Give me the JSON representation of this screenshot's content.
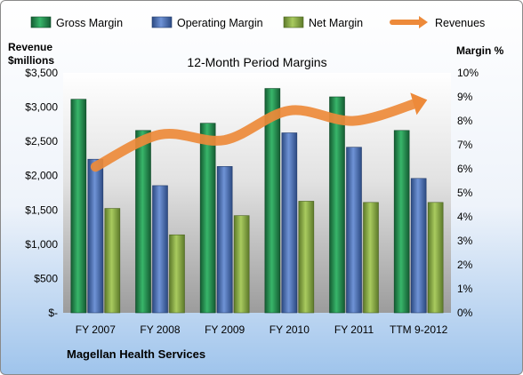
{
  "chart_data": {
    "type": "bar",
    "title": "12-Month Period Margins",
    "company": "Magellan Health Services",
    "ylabel_left": [
      "Revenue",
      "$millions"
    ],
    "ylabel_right": "Margin %",
    "categories": [
      "FY 2007",
      "FY 2008",
      "FY 2009",
      "FY 2010",
      "FY 2011",
      "TTM 9-2012"
    ],
    "y_left": {
      "min": 0,
      "max": 3500,
      "step": 500,
      "tick_labels": [
        "$-",
        "$500",
        "$1,000",
        "$1,500",
        "$2,000",
        "$2,500",
        "$3,000",
        "$3,500"
      ]
    },
    "y_right": {
      "min": 0,
      "max": 10,
      "step": 1,
      "tick_labels": [
        "0%",
        "1%",
        "2%",
        "3%",
        "4%",
        "5%",
        "6%",
        "7%",
        "8%",
        "9%",
        "10%"
      ]
    },
    "series": [
      {
        "name": "Gross Margin",
        "axis": "right",
        "color": "#1f8a4c",
        "values": [
          8.9,
          7.6,
          7.9,
          9.35,
          9.0,
          7.6
        ]
      },
      {
        "name": "Operating Margin",
        "axis": "right",
        "color": "#4a6fb3",
        "values": [
          6.4,
          5.3,
          6.1,
          7.5,
          6.9,
          5.6
        ]
      },
      {
        "name": "Net Margin",
        "axis": "right",
        "color": "#8fb04a",
        "values": [
          4.35,
          3.25,
          4.05,
          4.65,
          4.6,
          4.6
        ]
      },
      {
        "name": "Revenues",
        "axis": "left",
        "type": "line",
        "color": "#ed8a3a",
        "values": [
          2130,
          2600,
          2520,
          2950,
          2800,
          3070
        ]
      }
    ],
    "legend": {
      "position": "top"
    },
    "grid": false
  }
}
